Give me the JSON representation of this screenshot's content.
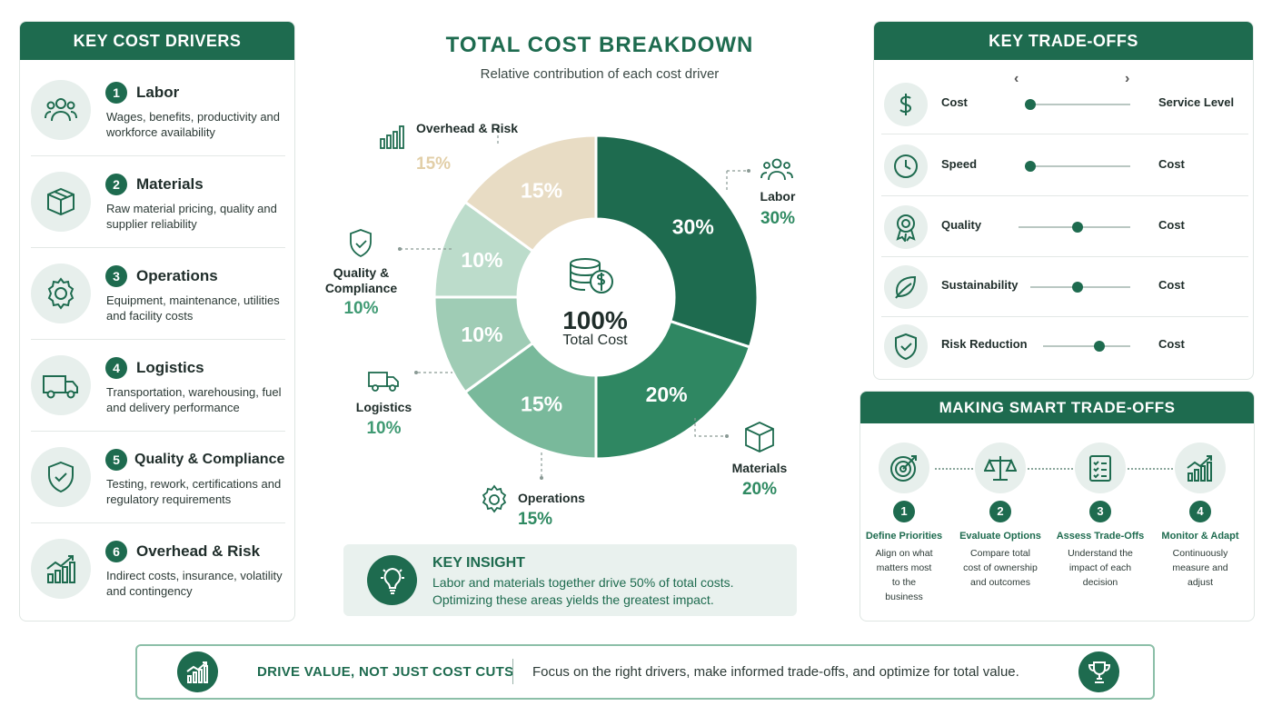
{
  "drivers": {
    "title": "KEY COST DRIVERS",
    "items": [
      {
        "num": "1",
        "name": "Labor",
        "desc": "Wages, benefits, productivity and workforce availability",
        "icon": "people-icon"
      },
      {
        "num": "2",
        "name": "Materials",
        "desc": "Raw material pricing, quality and supplier reliability",
        "icon": "box-icon"
      },
      {
        "num": "3",
        "name": "Operations",
        "desc": "Equipment, maintenance, utilities and facility costs",
        "icon": "gear-icon"
      },
      {
        "num": "4",
        "name": "Logistics",
        "desc": "Transportation, warehousing, fuel and delivery performance",
        "icon": "truck-icon"
      },
      {
        "num": "5",
        "name": "Quality & Compliance",
        "desc": "Testing, rework, certifications and regulatory requirements",
        "icon": "shield-check-icon"
      },
      {
        "num": "6",
        "name": "Overhead & Risk",
        "desc": "Indirect costs, insurance, volatility and contingency",
        "icon": "growth-chart-icon"
      }
    ]
  },
  "breakdown": {
    "title": "TOTAL COST BREAKDOWN",
    "subtitle": "Relative contribution of each cost driver",
    "center_value": "100%",
    "center_label": "Total Cost"
  },
  "chart_data": {
    "type": "pie",
    "categories": [
      "Labor",
      "Materials",
      "Operations",
      "Logistics",
      "Quality & Compliance",
      "Overhead & Risk"
    ],
    "values": [
      30,
      20,
      15,
      10,
      10,
      15
    ],
    "slice_labels": [
      "30%",
      "20%",
      "15%",
      "10%",
      "10%",
      "15%"
    ],
    "outer_labels": [
      "Labor",
      "Materials",
      "Operations",
      "Logistics",
      "Quality & Compliance",
      "Overhead & Risk"
    ],
    "colors": [
      "#1e6b4f",
      "#2f8762",
      "#79b99b",
      "#9fccb5",
      "#bcdccb",
      "#e8dcc4"
    ],
    "label_colors": [
      "#2f8a62",
      "#2f8a62",
      "#2f8a62",
      "#3f9a73",
      "#3f9a73",
      "#e2cfa8"
    ],
    "donut": true
  },
  "insight": {
    "title": "KEY INSIGHT",
    "line1": "Labor and materials together drive 50% of total costs.",
    "line2": "Optimizing these areas yields the greatest impact."
  },
  "tradeoffs": {
    "title": "KEY TRADE-OFFS",
    "prev": "‹",
    "next": "›",
    "rows": [
      {
        "left": "Cost",
        "right": "Service Level",
        "icon": "dollar-icon",
        "level": 0.05
      },
      {
        "left": "Speed",
        "right": "Cost",
        "icon": "clock-icon",
        "level": 0.05
      },
      {
        "left": "Quality",
        "right": "Cost",
        "icon": "award-icon",
        "level": 0.53
      },
      {
        "left": "Sustainability",
        "right": "Cost",
        "icon": "leaf-icon",
        "level": 0.47
      },
      {
        "left": "Risk Reduction",
        "right": "Cost",
        "icon": "shield-check-icon",
        "level": 0.65
      }
    ]
  },
  "smart": {
    "title": "MAKING SMART TRADE-OFFS",
    "steps": [
      {
        "num": "1",
        "title": "Define Priorities",
        "desc": "Align on what matters most to the business",
        "icon": "target-icon"
      },
      {
        "num": "2",
        "title": "Evaluate Options",
        "desc": "Compare total cost of ownership and outcomes",
        "icon": "scales-icon"
      },
      {
        "num": "3",
        "title": "Assess Trade-Offs",
        "desc": "Understand the impact of each decision",
        "icon": "checklist-icon"
      },
      {
        "num": "4",
        "title": "Monitor & Adapt",
        "desc": "Continuously measure and adjust",
        "icon": "growth-chart-icon"
      }
    ]
  },
  "footer": {
    "headline": "DRIVE VALUE, NOT JUST COST CUTS",
    "text": "Focus on the right drivers, make informed trade-offs, and optimize for total value."
  }
}
